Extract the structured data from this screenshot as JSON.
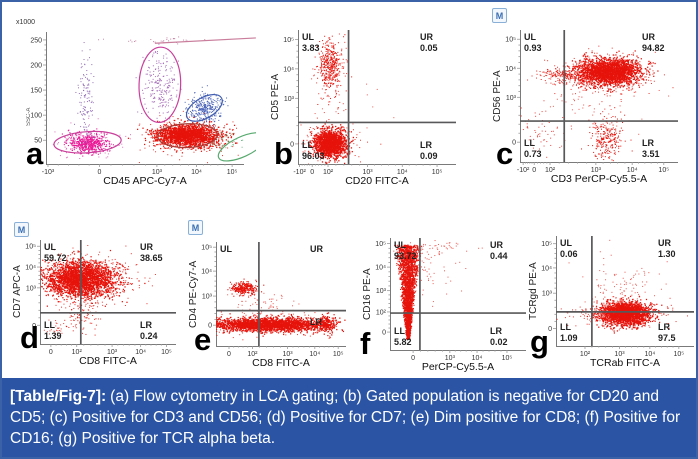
{
  "figure": {
    "border_color": "#3b61a7",
    "background": "#ffffff",
    "m_badge_label": "M",
    "colors": {
      "dot_red": "#e6140c",
      "axis": "#7a7a7a",
      "quad_line": "#58585a",
      "tick_text": "#333333",
      "caption_band": "#2b55a4",
      "caption_text": "#ffffff"
    },
    "caption": {
      "lead": "[Table/Fig-7]:",
      "text": "(a) Flow cytometry in LCA gating; (b) Gated population is negative for CD20 and CD5; (c) Positive for CD3 and CD56; (d) Positive for CD7; (e) Dim positive for CD8; (f) Positive for CD16; (g) Positive for TCR alpha beta."
    }
  },
  "chart_data": [
    {
      "id": "a",
      "type": "scatter",
      "letter": "a",
      "m_badge": false,
      "x_label": "CD45 APC-Cy7-A",
      "y_label": "SSC-A",
      "y_axis_multiplier": "x1000",
      "x_ticks": [
        {
          "label": "-10³",
          "f": 0.01
        },
        {
          "label": "0",
          "f": 0.27
        },
        {
          "label": "10³",
          "f": 0.56
        },
        {
          "label": "10⁴",
          "f": 0.76
        },
        {
          "label": "10⁵",
          "f": 0.94
        }
      ],
      "y_ticks": [
        {
          "label": "250",
          "f": 0.06
        },
        {
          "label": "200",
          "f": 0.25
        },
        {
          "label": "150",
          "f": 0.44
        },
        {
          "label": "100",
          "f": 0.63
        },
        {
          "label": "50",
          "f": 0.82
        }
      ],
      "cross": null,
      "quadrants": [],
      "clusters": [
        {
          "cx": 0.21,
          "cy": 0.84,
          "sx": 0.05,
          "sy": 0.035,
          "n": 500,
          "color": "#ec1696",
          "size": 1.1
        },
        {
          "cx": 0.21,
          "cy": 0.83,
          "sx": 0.1,
          "sy": 0.06,
          "n": 120,
          "color": "#d24fa6",
          "size": 1,
          "alpha": 0.8
        },
        {
          "cx": 0.2,
          "cy": 0.52,
          "sx": 0.02,
          "sy": 0.19,
          "n": 120,
          "color": "#8a5fb0",
          "size": 1,
          "alpha": 0.9
        },
        {
          "cx": 0.58,
          "cy": 0.4,
          "sx": 0.04,
          "sy": 0.13,
          "n": 210,
          "color": "#9a5ab0",
          "size": 1,
          "alpha": 0.9
        },
        {
          "cx": 0.8,
          "cy": 0.58,
          "sx": 0.045,
          "sy": 0.055,
          "n": 330,
          "color": "#4a63b8",
          "size": 1
        },
        {
          "cx": 0.71,
          "cy": 0.78,
          "sx": 0.08,
          "sy": 0.04,
          "n": 1900,
          "color": "#e6140c",
          "size": 1.25
        },
        {
          "cx": 0.71,
          "cy": 0.78,
          "sx": 0.12,
          "sy": 0.07,
          "n": 220,
          "color": "#e6140c",
          "size": 1,
          "alpha": 0.85
        },
        {
          "cx": 0.93,
          "cy": 0.84,
          "sx": 0.05,
          "sy": 0.04,
          "n": 35,
          "color": "#4fa56b",
          "size": 1,
          "alpha": 0.8
        },
        {
          "cx": 0.62,
          "cy": 0.06,
          "sx": 0.14,
          "sy": 0.015,
          "n": 28,
          "color": "#b86a8e",
          "size": 1,
          "alpha": 0.8
        }
      ],
      "gates": [
        {
          "cx": 0.21,
          "cy": 0.835,
          "rx": 0.17,
          "ry": 0.08,
          "rot": -4,
          "color": "#c93f9b"
        },
        {
          "cx": 0.575,
          "cy": 0.4,
          "rx": 0.105,
          "ry": 0.285,
          "rot": 2,
          "color": "#c93f9b"
        },
        {
          "cx": 0.8,
          "cy": 0.575,
          "rx": 0.1,
          "ry": 0.078,
          "rot": -30,
          "color": "#3f5cb0"
        },
        {
          "cx": 0.715,
          "cy": 0.785,
          "rx": 0.15,
          "ry": 0.09,
          "rot": -2,
          "color": "#a83c35"
        },
        {
          "cx": 0.99,
          "cy": 0.87,
          "rx": 0.13,
          "ry": 0.075,
          "rot": -25,
          "color": "#57a96e"
        }
      ],
      "lines": [
        {
          "x1": 0.55,
          "y1": 0.085,
          "x2": 1.06,
          "y2": 0.045,
          "color": "#c97d9b"
        }
      ]
    },
    {
      "id": "b",
      "type": "scatter",
      "letter": "b",
      "m_badge": false,
      "x_label": "CD20 FITC-A",
      "y_label": "CD5 PE-A",
      "x_ticks": [
        {
          "label": "-10²",
          "f": 0.01
        },
        {
          "label": "0",
          "f": 0.09
        },
        {
          "label": "10²",
          "f": 0.19
        },
        {
          "label": "10³",
          "f": 0.44
        },
        {
          "label": "10⁴",
          "f": 0.66
        },
        {
          "label": "10⁵",
          "f": 0.88
        }
      ],
      "y_ticks": [
        {
          "label": "10⁵",
          "f": 0.07
        },
        {
          "label": "10⁴",
          "f": 0.29
        },
        {
          "label": "10³",
          "f": 0.51
        },
        {
          "label": "0",
          "f": 0.85
        }
      ],
      "cross": {
        "fx": 0.32,
        "fy": 0.69
      },
      "quadrants": [
        {
          "pos": "UL",
          "label": "UL",
          "value": "3.83"
        },
        {
          "pos": "UR",
          "label": "UR",
          "value": "0.05"
        },
        {
          "pos": "LL",
          "label": "LL",
          "value": "96.03"
        },
        {
          "pos": "LR",
          "label": "LR",
          "value": "0.09"
        }
      ],
      "clusters": [
        {
          "cx": 0.2,
          "cy": 0.27,
          "sx": 0.035,
          "sy": 0.09,
          "n": 380,
          "color": "#e6140c",
          "size": 1
        },
        {
          "cx": 0.2,
          "cy": 0.3,
          "sx": 0.055,
          "sy": 0.14,
          "n": 90,
          "color": "#e6140c",
          "size": 1,
          "alpha": 0.8
        },
        {
          "cx": 0.2,
          "cy": 0.845,
          "sx": 0.048,
          "sy": 0.05,
          "n": 1500,
          "color": "#e6140c",
          "size": 1.3
        },
        {
          "cx": 0.21,
          "cy": 0.84,
          "sx": 0.085,
          "sy": 0.075,
          "n": 200,
          "color": "#e6140c",
          "size": 1,
          "alpha": 0.85
        },
        {
          "cx": 0.33,
          "cy": 0.62,
          "sx": 0.12,
          "sy": 0.1,
          "n": 18,
          "color": "#e6140c",
          "size": 1,
          "alpha": 0.7
        }
      ],
      "gates": [],
      "lines": []
    },
    {
      "id": "c",
      "type": "scatter",
      "letter": "c",
      "m_badge": true,
      "x_label": "CD3 PerCP-Cy5.5-A",
      "y_label": "CD56 PE-A",
      "x_ticks": [
        {
          "label": "-10²",
          "f": 0.02
        },
        {
          "label": "0",
          "f": 0.09
        },
        {
          "label": "10²",
          "f": 0.19
        },
        {
          "label": "10³",
          "f": 0.48
        },
        {
          "label": "10⁴",
          "f": 0.71
        },
        {
          "label": "10⁵",
          "f": 0.91
        }
      ],
      "y_ticks": [
        {
          "label": "10⁵",
          "f": 0.07
        },
        {
          "label": "10⁴",
          "f": 0.29
        },
        {
          "label": "10³",
          "f": 0.51
        },
        {
          "label": "0",
          "f": 0.85
        }
      ],
      "cross": {
        "fx": 0.28,
        "fy": 0.69
      },
      "quadrants": [
        {
          "pos": "UL",
          "label": "UL",
          "value": "0.93"
        },
        {
          "pos": "UR",
          "label": "UR",
          "value": "94.82"
        },
        {
          "pos": "LL",
          "label": "LL",
          "value": "0.73"
        },
        {
          "pos": "LR",
          "label": "LR",
          "value": "3.51"
        }
      ],
      "clusters": [
        {
          "cx": 0.56,
          "cy": 0.31,
          "sx": 0.095,
          "sy": 0.05,
          "n": 2200,
          "color": "#e6140c",
          "size": 1.25
        },
        {
          "cx": 0.52,
          "cy": 0.33,
          "sx": 0.15,
          "sy": 0.08,
          "n": 380,
          "color": "#e6140c",
          "size": 1,
          "alpha": 0.85
        },
        {
          "cx": 0.3,
          "cy": 0.335,
          "sx": 0.09,
          "sy": 0.028,
          "n": 220,
          "color": "#e6140c",
          "size": 1,
          "alpha": 0.9
        },
        {
          "cx": 0.55,
          "cy": 0.82,
          "sx": 0.05,
          "sy": 0.08,
          "n": 260,
          "color": "#e6140c",
          "size": 1
        },
        {
          "cx": 0.13,
          "cy": 0.72,
          "sx": 0.09,
          "sy": 0.13,
          "n": 70,
          "color": "#e6140c",
          "size": 1,
          "alpha": 0.8
        },
        {
          "cx": 0.5,
          "cy": 0.55,
          "sx": 0.2,
          "sy": 0.12,
          "n": 50,
          "color": "#e6140c",
          "size": 1,
          "alpha": 0.7
        }
      ],
      "gates": [],
      "lines": []
    },
    {
      "id": "d",
      "type": "scatter",
      "letter": "d",
      "m_badge": true,
      "x_label": "CD8 FITC-A",
      "y_label": "CD7 APC-A",
      "x_ticks": [
        {
          "label": "0",
          "f": 0.08
        },
        {
          "label": "10²",
          "f": 0.27
        },
        {
          "label": "10³",
          "f": 0.53
        },
        {
          "label": "10⁴",
          "f": 0.74
        },
        {
          "label": "10⁵",
          "f": 0.93
        }
      ],
      "y_ticks": [
        {
          "label": "10⁵",
          "f": 0.06
        },
        {
          "label": "10⁴",
          "f": 0.26
        },
        {
          "label": "10³",
          "f": 0.46
        },
        {
          "label": "0",
          "f": 0.82
        }
      ],
      "cross": {
        "fx": 0.3,
        "fy": 0.7
      },
      "quadrants": [
        {
          "pos": "UL",
          "label": "UL",
          "value": "59.72"
        },
        {
          "pos": "UR",
          "label": "UR",
          "value": "38.65"
        },
        {
          "pos": "LL",
          "label": "LL",
          "value": "1.39"
        },
        {
          "pos": "LR",
          "label": "LR",
          "value": "0.24"
        }
      ],
      "clusters": [
        {
          "cx": 0.3,
          "cy": 0.37,
          "sx": 0.13,
          "sy": 0.085,
          "n": 2400,
          "color": "#e6140c",
          "size": 1.25
        },
        {
          "cx": 0.32,
          "cy": 0.39,
          "sx": 0.19,
          "sy": 0.12,
          "n": 400,
          "color": "#e6140c",
          "size": 1,
          "alpha": 0.85
        },
        {
          "cx": 0.3,
          "cy": 0.72,
          "sx": 0.05,
          "sy": 0.09,
          "n": 80,
          "color": "#e6140c",
          "size": 1,
          "alpha": 0.9
        },
        {
          "cx": 0.12,
          "cy": 0.84,
          "sx": 0.06,
          "sy": 0.05,
          "n": 30,
          "color": "#e6140c",
          "size": 1,
          "alpha": 0.8
        }
      ],
      "gates": [],
      "lines": []
    },
    {
      "id": "e",
      "type": "scatter",
      "letter": "e",
      "m_badge": true,
      "x_label": "CD8 FITC-A",
      "y_label": "CD4 PE-Cy7-A",
      "x_ticks": [
        {
          "label": "0",
          "f": 0.1
        },
        {
          "label": "10²",
          "f": 0.28
        },
        {
          "label": "10³",
          "f": 0.55
        },
        {
          "label": "10⁴",
          "f": 0.76
        },
        {
          "label": "10⁵",
          "f": 0.94
        }
      ],
      "y_ticks": [
        {
          "label": "10⁵",
          "f": 0.05
        },
        {
          "label": "10⁴",
          "f": 0.28
        },
        {
          "label": "10³",
          "f": 0.52
        },
        {
          "label": "0",
          "f": 0.8
        }
      ],
      "cross": {
        "fx": 0.33,
        "fy": 0.66
      },
      "quadrants": [
        {
          "pos": "UL",
          "label": "UL",
          "value": null
        },
        {
          "pos": "UR",
          "label": "UR",
          "value": null
        },
        {
          "pos": "LR",
          "label": "LR",
          "value": null
        }
      ],
      "clusters": [
        {
          "cx": 0.4,
          "cy": 0.79,
          "sx": 0.21,
          "sy": 0.032,
          "n": 2300,
          "color": "#e6140c",
          "size": 1.25
        },
        {
          "cx": 0.42,
          "cy": 0.79,
          "sx": 0.27,
          "sy": 0.05,
          "n": 300,
          "color": "#e6140c",
          "size": 1,
          "alpha": 0.85
        },
        {
          "cx": 0.84,
          "cy": 0.78,
          "sx": 0.035,
          "sy": 0.04,
          "n": 220,
          "color": "#e6140c",
          "size": 1.2
        },
        {
          "cx": 0.21,
          "cy": 0.44,
          "sx": 0.05,
          "sy": 0.028,
          "n": 280,
          "color": "#e6140c",
          "size": 1.1
        },
        {
          "cx": 0.33,
          "cy": 0.6,
          "sx": 0.13,
          "sy": 0.08,
          "n": 70,
          "color": "#e6140c",
          "size": 1,
          "alpha": 0.7
        }
      ],
      "gates": [],
      "lines": []
    },
    {
      "id": "f",
      "type": "scatter",
      "letter": "f",
      "m_badge": false,
      "x_label": "PerCP-Cy5.5-A",
      "y_label": "CD16 PE-A",
      "x_ticks": [
        {
          "label": "0",
          "f": 0.17
        },
        {
          "label": "10³",
          "f": 0.44
        },
        {
          "label": "10⁴",
          "f": 0.64
        },
        {
          "label": "10⁵",
          "f": 0.86
        }
      ],
      "y_ticks": [
        {
          "label": "10⁵",
          "f": 0.05
        },
        {
          "label": "10⁴",
          "f": 0.26
        },
        {
          "label": "10³",
          "f": 0.47
        },
        {
          "label": "10²",
          "f": 0.66
        },
        {
          "label": "0",
          "f": 0.84
        }
      ],
      "cross": {
        "fx": 0.22,
        "fy": 0.67
      },
      "quadrants": [
        {
          "pos": "UL",
          "label": "UL",
          "value": "93.72"
        },
        {
          "pos": "UR",
          "label": "UR",
          "value": "0.44"
        },
        {
          "pos": "LL",
          "label": "LL",
          "value": "5.82"
        },
        {
          "pos": "LR",
          "label": "LR",
          "value": "0.02"
        }
      ],
      "clusters": [
        {
          "shape": "funnel",
          "cx": 0.13,
          "y1": 0.06,
          "y2": 0.9,
          "w1": 0.105,
          "w2": 0.012,
          "n": 2600,
          "color": "#e6140c",
          "size": 1.15
        },
        {
          "cx": 0.25,
          "cy": 0.25,
          "sx": 0.12,
          "sy": 0.13,
          "n": 80,
          "color": "#e6140c",
          "size": 1,
          "alpha": 0.7
        },
        {
          "cx": 0.3,
          "cy": 0.08,
          "sx": 0.18,
          "sy": 0.02,
          "n": 40,
          "color": "#e6140c",
          "size": 1,
          "alpha": 0.7
        }
      ],
      "gates": [],
      "lines": []
    },
    {
      "id": "g",
      "type": "scatter",
      "letter": "g",
      "m_badge": false,
      "x_label": "TCRab FITC-A",
      "y_label": "TCRgd PE-A",
      "x_ticks": [
        {
          "label": "10²",
          "f": 0.21
        },
        {
          "label": "10³",
          "f": 0.46
        },
        {
          "label": "10⁴",
          "f": 0.68
        },
        {
          "label": "10⁵",
          "f": 0.89
        }
      ],
      "y_ticks": [
        {
          "label": "10⁵",
          "f": 0.07
        },
        {
          "label": "10⁴",
          "f": 0.29
        },
        {
          "label": "10³",
          "f": 0.52
        },
        {
          "label": "0",
          "f": 0.84
        }
      ],
      "cross": {
        "fx": 0.26,
        "fy": 0.69
      },
      "quadrants": [
        {
          "pos": "UL",
          "label": "UL",
          "value": "0.06"
        },
        {
          "pos": "UR",
          "label": "UR",
          "value": "1.30"
        },
        {
          "pos": "LL",
          "label": "LL",
          "value": "1.09"
        },
        {
          "pos": "LR",
          "label": "LR",
          "value": "97.5"
        }
      ],
      "clusters": [
        {
          "cx": 0.5,
          "cy": 0.7,
          "sx": 0.085,
          "sy": 0.05,
          "n": 2100,
          "color": "#e6140c",
          "size": 1.25
        },
        {
          "cx": 0.45,
          "cy": 0.71,
          "sx": 0.15,
          "sy": 0.06,
          "n": 380,
          "color": "#e6140c",
          "size": 1,
          "alpha": 0.85
        },
        {
          "cx": 0.52,
          "cy": 0.48,
          "sx": 0.13,
          "sy": 0.1,
          "n": 80,
          "color": "#e6140c",
          "size": 1,
          "alpha": 0.7
        },
        {
          "cx": 0.3,
          "cy": 0.3,
          "sx": 0.15,
          "sy": 0.12,
          "n": 15,
          "color": "#e6140c",
          "size": 1,
          "alpha": 0.7
        }
      ],
      "gates": [],
      "lines": []
    }
  ]
}
